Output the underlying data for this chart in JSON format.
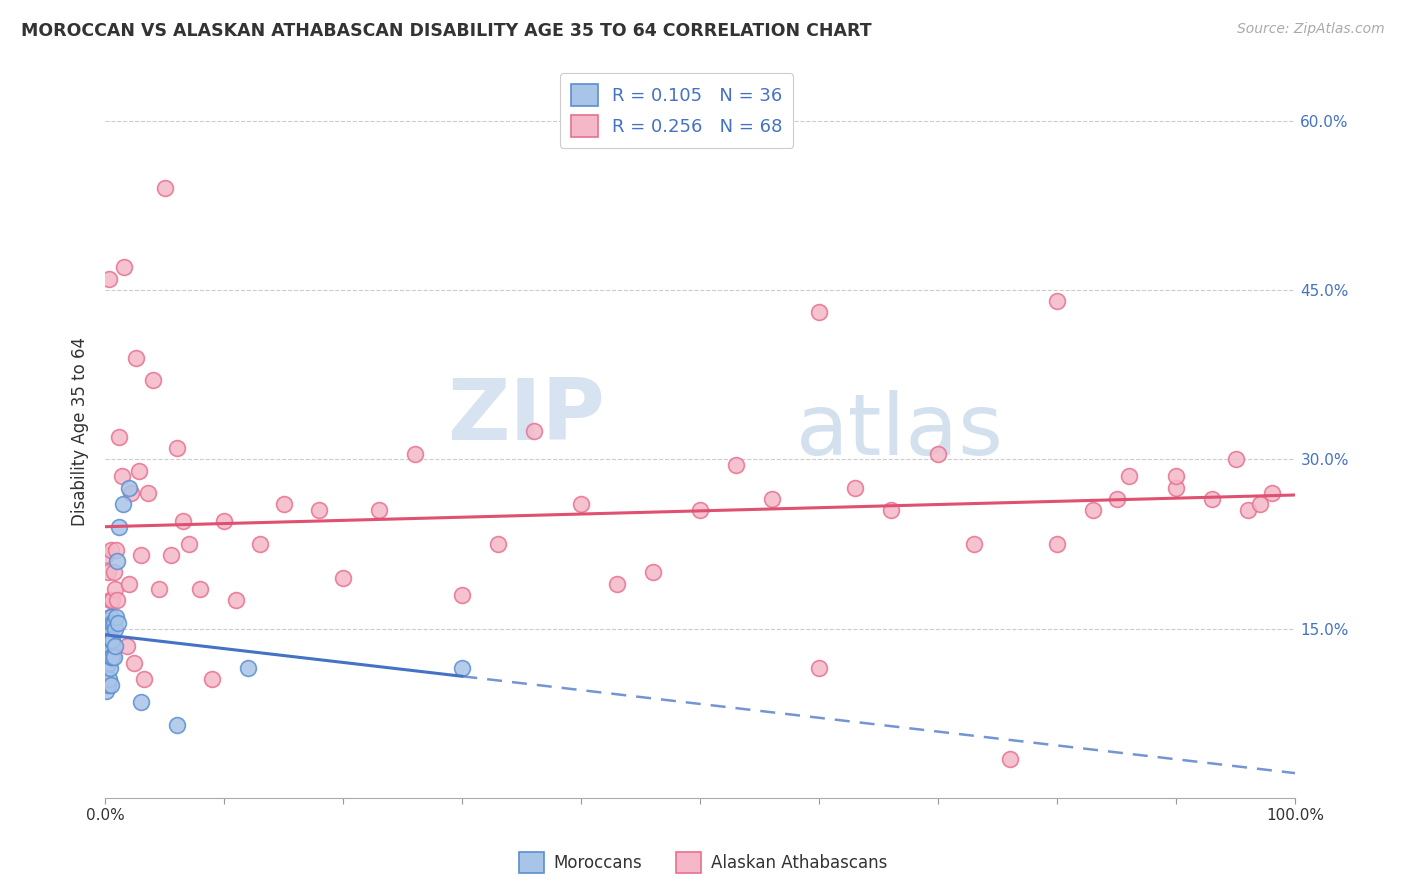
{
  "title": "MOROCCAN VS ALASKAN ATHABASCAN DISABILITY AGE 35 TO 64 CORRELATION CHART",
  "source": "Source: ZipAtlas.com",
  "ylabel": "Disability Age 35 to 64",
  "xlim": [
    0.0,
    1.0
  ],
  "ylim": [
    0.0,
    0.65
  ],
  "xticks": [
    0.0,
    0.1,
    0.2,
    0.3,
    0.4,
    0.5,
    0.6,
    0.7,
    0.8,
    0.9,
    1.0
  ],
  "xticklabels_edge": {
    "0.0": "0.0%",
    "1.0": "100.0%"
  },
  "yticks_right": [
    0.15,
    0.3,
    0.45,
    0.6
  ],
  "yticklabels_right": [
    "15.0%",
    "30.0%",
    "45.0%",
    "60.0%"
  ],
  "moroccan_color": "#a8c4e8",
  "moroccan_edge": "#5b8fcf",
  "athabascan_color": "#f4b8c8",
  "athabascan_edge": "#e87090",
  "moroccan_line_color": "#4472c4",
  "athabascan_line_color": "#e05070",
  "moroccan_R": 0.105,
  "moroccan_N": 36,
  "athabascan_R": 0.256,
  "athabascan_N": 68,
  "legend_label_moroccan": "Moroccans",
  "legend_label_athabascan": "Alaskan Athabascans",
  "watermark_zip": "ZIP",
  "watermark_atlas": "atlas",
  "moroccan_x": [
    0.001,
    0.001,
    0.001,
    0.002,
    0.002,
    0.002,
    0.002,
    0.003,
    0.003,
    0.003,
    0.003,
    0.004,
    0.004,
    0.004,
    0.004,
    0.005,
    0.005,
    0.005,
    0.005,
    0.006,
    0.006,
    0.006,
    0.007,
    0.007,
    0.008,
    0.008,
    0.009,
    0.01,
    0.011,
    0.012,
    0.015,
    0.02,
    0.03,
    0.06,
    0.12,
    0.3
  ],
  "moroccan_y": [
    0.095,
    0.115,
    0.13,
    0.1,
    0.125,
    0.14,
    0.155,
    0.105,
    0.12,
    0.14,
    0.155,
    0.115,
    0.13,
    0.145,
    0.16,
    0.1,
    0.125,
    0.14,
    0.16,
    0.125,
    0.14,
    0.155,
    0.125,
    0.155,
    0.135,
    0.15,
    0.16,
    0.21,
    0.155,
    0.24,
    0.26,
    0.275,
    0.085,
    0.065,
    0.115,
    0.115
  ],
  "athabascan_x": [
    0.001,
    0.002,
    0.003,
    0.004,
    0.005,
    0.005,
    0.006,
    0.007,
    0.008,
    0.009,
    0.01,
    0.012,
    0.014,
    0.016,
    0.018,
    0.02,
    0.022,
    0.024,
    0.026,
    0.028,
    0.03,
    0.033,
    0.036,
    0.04,
    0.045,
    0.05,
    0.055,
    0.06,
    0.065,
    0.07,
    0.08,
    0.09,
    0.1,
    0.11,
    0.13,
    0.15,
    0.18,
    0.2,
    0.23,
    0.26,
    0.3,
    0.33,
    0.36,
    0.4,
    0.43,
    0.46,
    0.5,
    0.53,
    0.56,
    0.6,
    0.63,
    0.66,
    0.7,
    0.73,
    0.76,
    0.8,
    0.83,
    0.86,
    0.9,
    0.93,
    0.96,
    0.6,
    0.8,
    0.85,
    0.9,
    0.95,
    0.97,
    0.98
  ],
  "athabascan_y": [
    0.215,
    0.2,
    0.46,
    0.175,
    0.15,
    0.22,
    0.175,
    0.2,
    0.185,
    0.22,
    0.175,
    0.32,
    0.285,
    0.47,
    0.135,
    0.19,
    0.27,
    0.12,
    0.39,
    0.29,
    0.215,
    0.105,
    0.27,
    0.37,
    0.185,
    0.54,
    0.215,
    0.31,
    0.245,
    0.225,
    0.185,
    0.105,
    0.245,
    0.175,
    0.225,
    0.26,
    0.255,
    0.195,
    0.255,
    0.305,
    0.18,
    0.225,
    0.325,
    0.26,
    0.19,
    0.2,
    0.255,
    0.295,
    0.265,
    0.115,
    0.275,
    0.255,
    0.305,
    0.225,
    0.035,
    0.225,
    0.255,
    0.285,
    0.275,
    0.265,
    0.255,
    0.43,
    0.44,
    0.265,
    0.285,
    0.3,
    0.26,
    0.27
  ]
}
